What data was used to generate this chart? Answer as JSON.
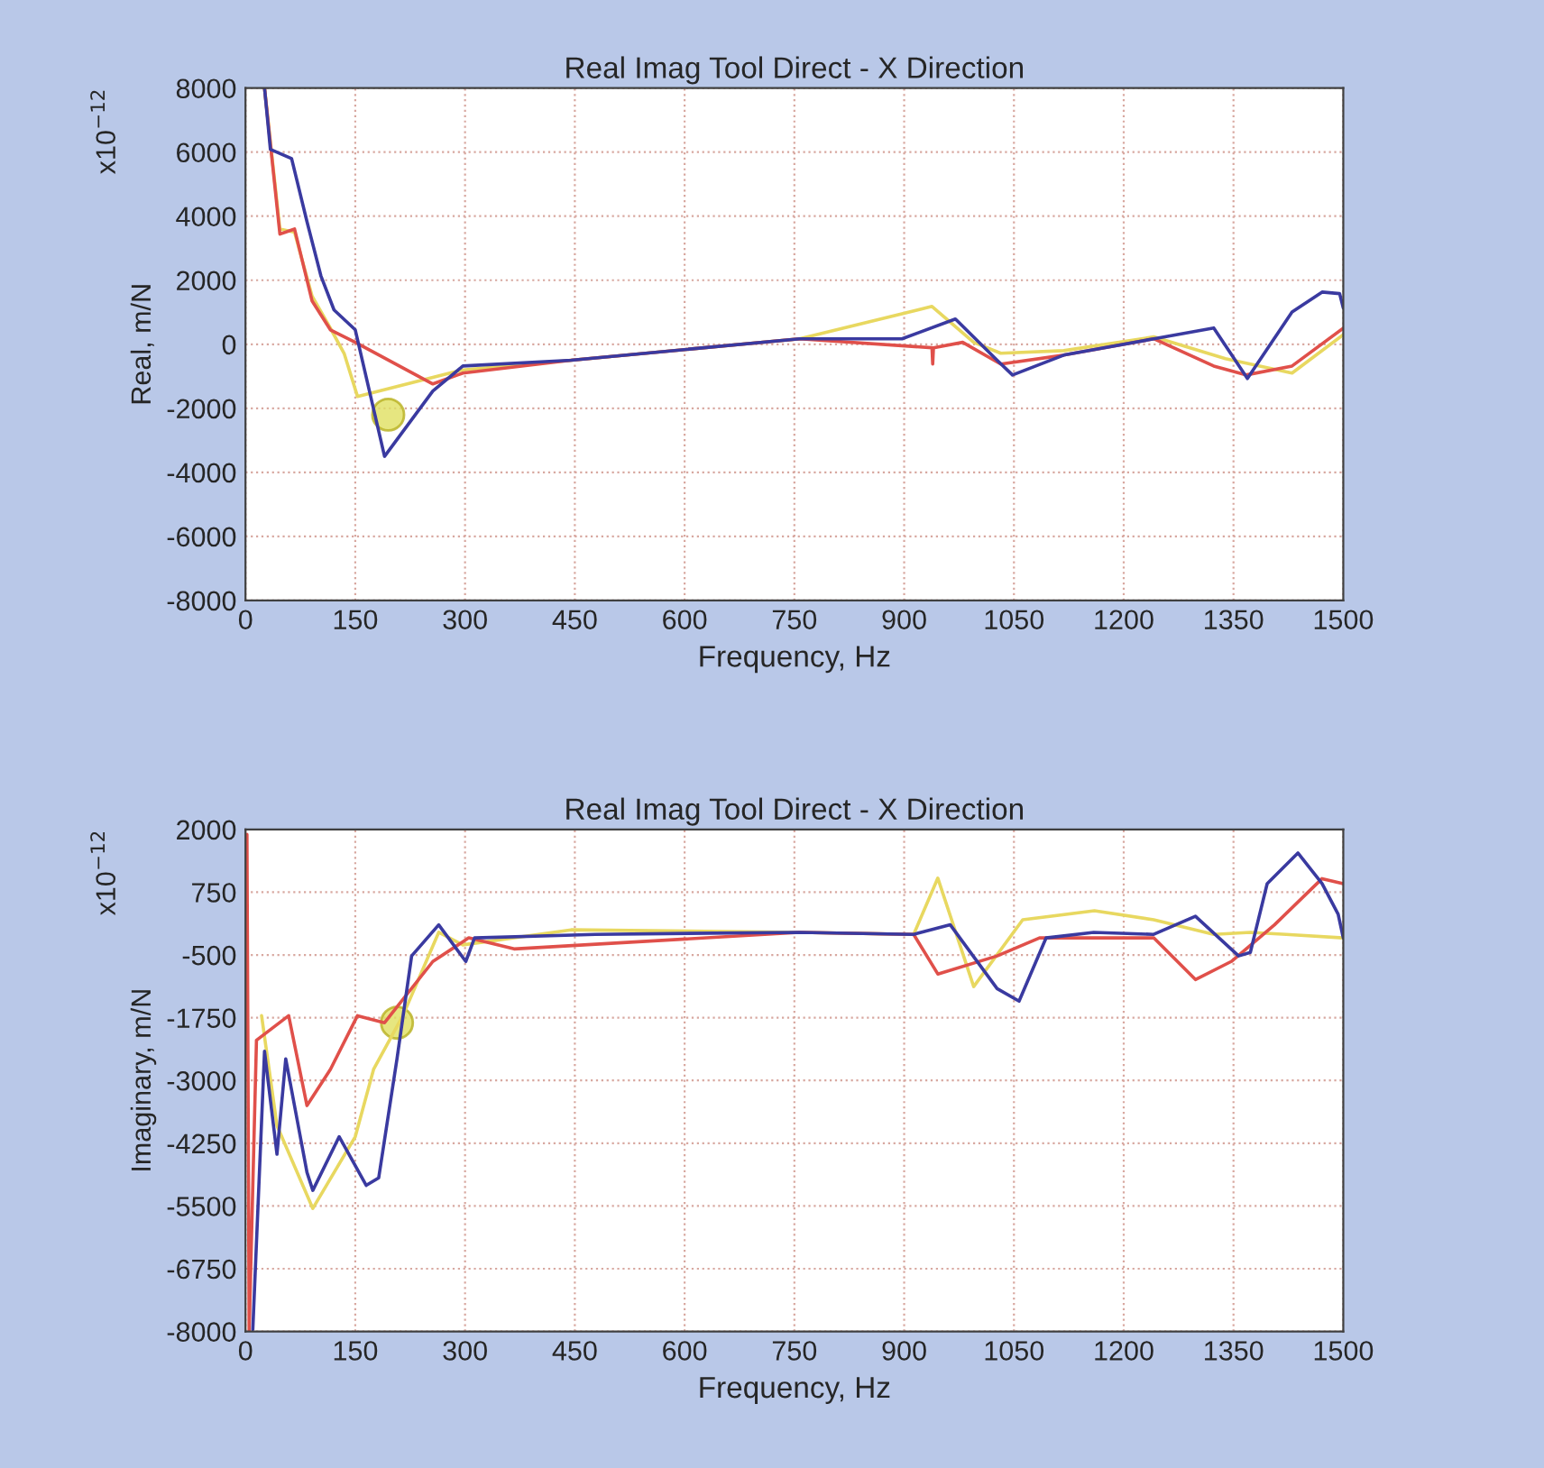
{
  "chart_data": [
    {
      "type": "line",
      "title": "Real Imag Tool Direct - X Direction",
      "xlabel": "Frequency, Hz",
      "ylabel": "Real, m/N",
      "annotations": [
        "x10$^{−12}$"
      ],
      "xlim": [
        0,
        1500
      ],
      "xticks": [
        0,
        150,
        300,
        450,
        600,
        750,
        900,
        1050,
        1200,
        1350,
        1500
      ],
      "ylim": [
        -8000,
        8000
      ],
      "yticks": [
        -8000,
        -6000,
        -4000,
        -2000,
        0,
        2000,
        4000,
        6000,
        8000
      ],
      "grid": true,
      "line_style": "solid",
      "series": [
        {
          "color": "#e8d860",
          "x": [
            26,
            47,
            67,
            91,
            116,
            135,
            153,
            297,
            445,
            757,
            938,
            995,
            1032,
            1118,
            1241,
            1339,
            1430,
            1500
          ],
          "values": [
            8000,
            3600,
            3500,
            1500,
            500,
            -300,
            -1630,
            -800,
            -500,
            170,
            1180,
            60,
            -280,
            -200,
            230,
            -450,
            -900,
            300
          ]
        },
        {
          "color": "#e0504a",
          "x": [
            26,
            47,
            67,
            91,
            116,
            150,
            256,
            297,
            445,
            757,
            938,
            939,
            940,
            980,
            1032,
            1118,
            1241,
            1323,
            1367,
            1430,
            1500
          ],
          "values": [
            8000,
            3440,
            3600,
            1350,
            450,
            60,
            -1240,
            -900,
            -500,
            170,
            -110,
            -620,
            -110,
            60,
            -620,
            -340,
            170,
            -680,
            -960,
            -680,
            500
          ]
        },
        {
          "color": "#3a3aa0",
          "x": [
            26,
            34,
            63,
            84,
            103,
            121,
            150,
            190,
            256,
            297,
            445,
            757,
            897,
            970,
            1027,
            1048,
            1118,
            1241,
            1323,
            1369,
            1430,
            1471,
            1495,
            1500
          ],
          "values": [
            8000,
            6085,
            5800,
            3830,
            2140,
            1070,
            450,
            -3500,
            -1460,
            -680,
            -500,
            170,
            170,
            790,
            -500,
            -960,
            -340,
            170,
            510,
            -1070,
            1010,
            1630,
            1580,
            1130
          ]
        },
        {
          "type": "scatter",
          "marker": "circle",
          "color": "#e0e060",
          "x": [
            195
          ],
          "values": [
            -2200
          ]
        }
      ]
    },
    {
      "type": "line",
      "title": "Real Imag Tool Direct - X Direction",
      "xlabel": "Frequency, Hz",
      "ylabel": "Imaginary, m/N",
      "annotations": [
        "x10$^{−12}$"
      ],
      "xlim": [
        0,
        1500
      ],
      "xticks": [
        0,
        150,
        300,
        450,
        600,
        750,
        900,
        1050,
        1200,
        1350,
        1500
      ],
      "ylim": [
        -8000,
        2000
      ],
      "yticks": [
        -8000,
        -6750,
        -5500,
        -4250,
        -3000,
        -1750,
        -500,
        750,
        2000
      ],
      "grid": true,
      "line_style": "solid",
      "series": [
        {
          "color": "#e8d860",
          "x": [
            22,
            43,
            92,
            150,
            175,
            215,
            264,
            297,
            445,
            757,
            913,
            946,
            995,
            1062,
            1160,
            1241,
            1323,
            1373,
            1422,
            1500
          ],
          "values": [
            -1710,
            -3900,
            -5550,
            -4120,
            -2780,
            -1710,
            -50,
            -300,
            0,
            -50,
            -90,
            1030,
            -1130,
            200,
            380,
            200,
            -90,
            -50,
            -90,
            -160
          ]
        },
        {
          "color": "#e0504a",
          "x": [
            2,
            5,
            15,
            59,
            84,
            116,
            153,
            190,
            256,
            305,
            367,
            757,
            913,
            946,
            1027,
            1085,
            1241,
            1298,
            1347,
            1406,
            1471,
            1500
          ],
          "values": [
            1900,
            -8000,
            -2200,
            -1710,
            -3500,
            -2780,
            -1710,
            -1850,
            -630,
            -160,
            -380,
            -50,
            -90,
            -880,
            -520,
            -160,
            -160,
            -990,
            -630,
            100,
            1020,
            920
          ]
        },
        {
          "color": "#3a3aa0",
          "x": [
            10,
            26,
            43,
            55,
            84,
            92,
            128,
            165,
            182,
            207,
            227,
            264,
            301,
            313,
            478,
            756,
            913,
            963,
            1027,
            1057,
            1094,
            1159,
            1241,
            1298,
            1357,
            1373,
            1396,
            1438,
            1471,
            1493,
            1500
          ],
          "values": [
            -7960,
            -2420,
            -4470,
            -2570,
            -4830,
            -5190,
            -4120,
            -5090,
            -4940,
            -2570,
            -520,
            100,
            -630,
            -160,
            -90,
            -50,
            -90,
            100,
            -1170,
            -1420,
            -160,
            -50,
            -90,
            270,
            -520,
            -450,
            920,
            1530,
            920,
            310,
            -160
          ]
        },
        {
          "type": "scatter",
          "marker": "circle",
          "color": "#e0e060",
          "x": [
            207
          ],
          "values": [
            -1850
          ]
        }
      ]
    }
  ]
}
